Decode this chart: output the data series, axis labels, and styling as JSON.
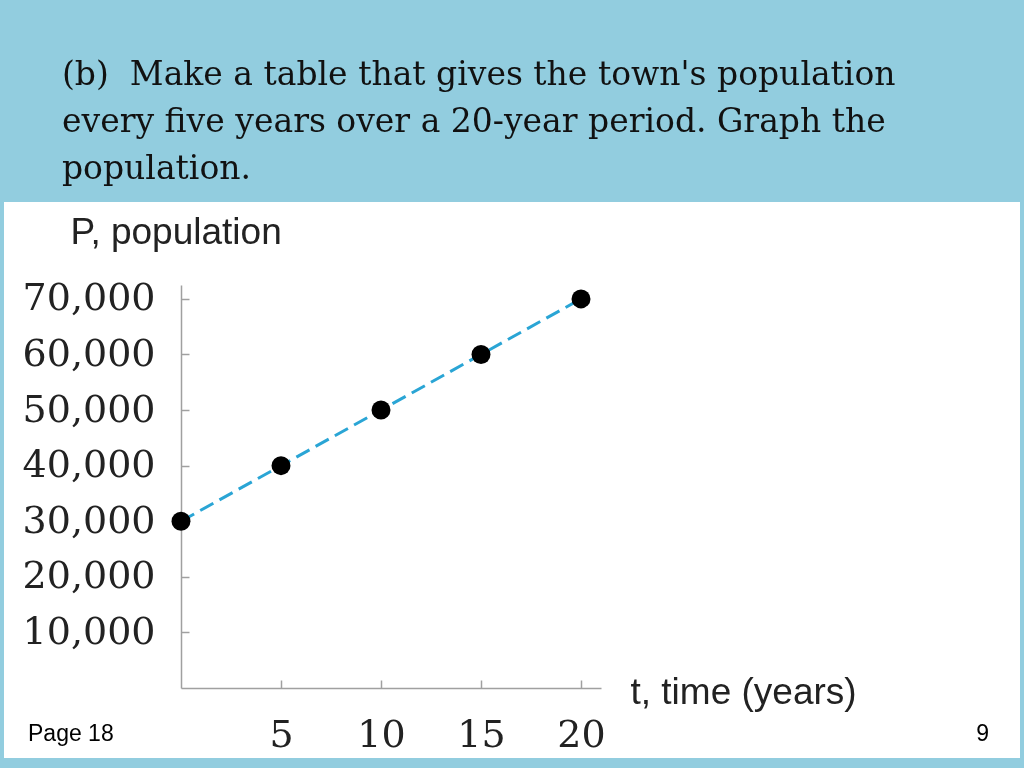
{
  "chart_data": {
    "type": "line",
    "title": "(b)  Make a table that gives the town's population every five years over a 20-year period. Graph the population.",
    "xlabel": "t, time (years)",
    "ylabel": "P, population",
    "annotations": [
      "Page 18",
      "9"
    ],
    "x": [
      0,
      5,
      10,
      15,
      20
    ],
    "series": [
      {
        "color": "#2aa5d5",
        "line_style": "dashed",
        "marker": "none",
        "values": [
          30000,
          40000,
          50000,
          60000,
          70000
        ]
      },
      {
        "type": "scatter",
        "color": "#000000",
        "marker": "circle",
        "values": [
          30000,
          40000,
          50000,
          60000,
          70000
        ]
      }
    ],
    "xlim": [
      0,
      21
    ],
    "xticks": [
      5,
      10,
      15,
      20
    ],
    "ylim": [
      0,
      72500
    ],
    "yticks": [
      {
        "value": 10000,
        "label": "10,000"
      },
      {
        "value": 20000,
        "label": "20,000"
      },
      {
        "value": 30000,
        "label": "30,000"
      },
      {
        "value": 40000,
        "label": "40,000"
      },
      {
        "value": 50000,
        "label": "50,000"
      },
      {
        "value": 60000,
        "label": "60,000"
      },
      {
        "value": 70000,
        "label": "70,000"
      }
    ]
  }
}
